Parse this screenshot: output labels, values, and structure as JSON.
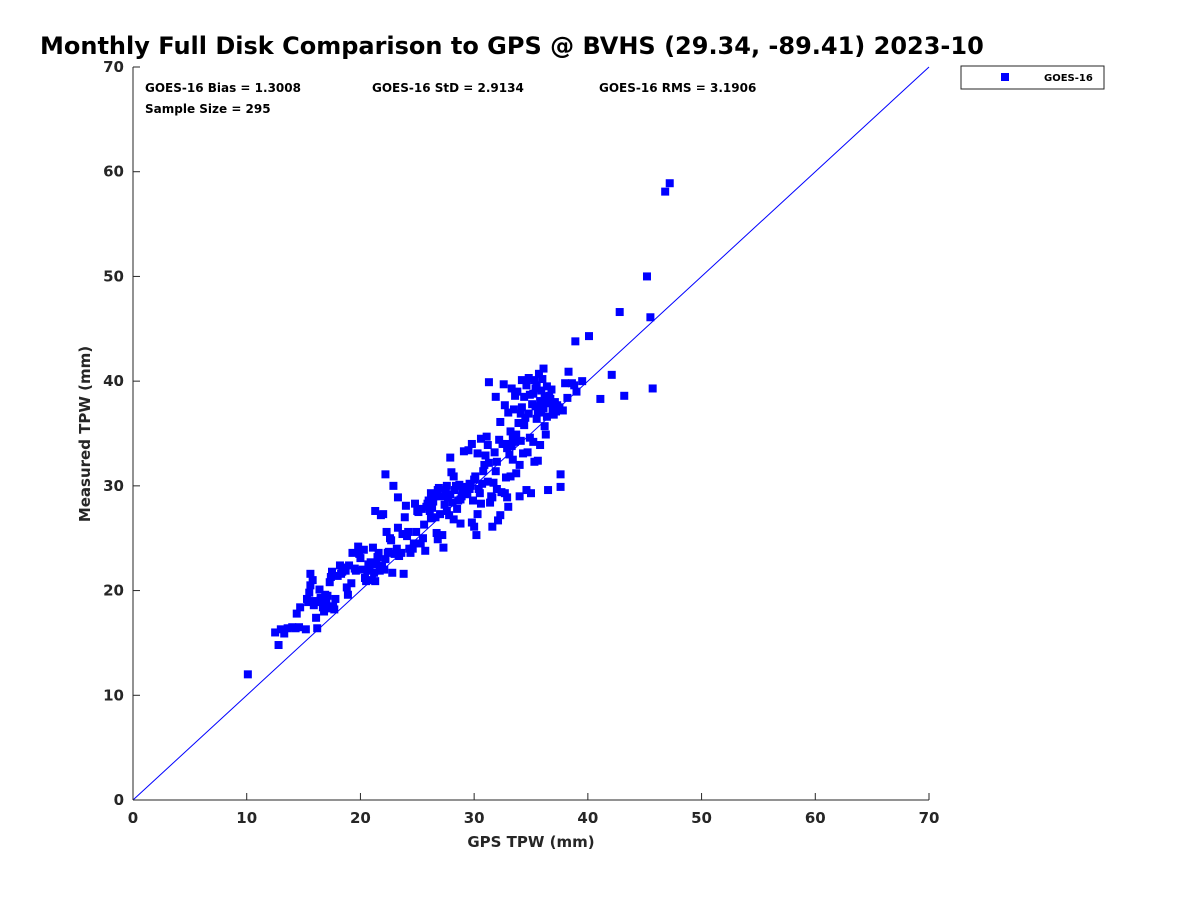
{
  "chart_data": {
    "type": "scatter",
    "title": "Monthly Full Disk Comparison to GPS @ BVHS (29.34, -89.41) 2023-10",
    "xlabel": "GPS TPW (mm)",
    "ylabel": "Measured TPW (mm)",
    "xlim": [
      0,
      70
    ],
    "ylim": [
      0,
      70
    ],
    "xticks": [
      "0",
      "10",
      "20",
      "30",
      "40",
      "50",
      "60",
      "70"
    ],
    "yticks": [
      "0",
      "10",
      "20",
      "30",
      "40",
      "50",
      "60",
      "70"
    ],
    "grid": false,
    "legend_position": "outside-top-right",
    "stats": {
      "bias": "GOES-16 Bias = 1.3008",
      "std": "GOES-16 StD = 2.9134",
      "rms": "GOES-16 RMS = 3.1906",
      "sample": "Sample Size = 295"
    },
    "reference_line": {
      "name": "1:1 line",
      "x": [
        0,
        70
      ],
      "y": [
        0,
        70
      ],
      "color": "#0000ff"
    },
    "series": [
      {
        "name": "GOES-16",
        "color": "#0000ff",
        "marker": "square",
        "points": [
          [
            10.1,
            12.0
          ],
          [
            12.5,
            16.0
          ],
          [
            12.8,
            14.8
          ],
          [
            13.0,
            16.3
          ],
          [
            13.3,
            15.9
          ],
          [
            13.6,
            16.4
          ],
          [
            14.0,
            16.5
          ],
          [
            14.3,
            16.4
          ],
          [
            14.6,
            16.5
          ],
          [
            14.4,
            17.8
          ],
          [
            14.7,
            18.4
          ],
          [
            15.2,
            16.3
          ],
          [
            15.3,
            19.2
          ],
          [
            15.5,
            19.8
          ],
          [
            15.6,
            20.5
          ],
          [
            15.6,
            21.6
          ],
          [
            15.8,
            21.0
          ],
          [
            16.0,
            19.0
          ],
          [
            16.2,
            16.4
          ],
          [
            16.3,
            18.9
          ],
          [
            16.5,
            19.3
          ],
          [
            16.4,
            20.1
          ],
          [
            16.7,
            18.4
          ],
          [
            16.9,
            19.6
          ],
          [
            17.0,
            18.9
          ],
          [
            17.2,
            18.3
          ],
          [
            17.3,
            20.8
          ],
          [
            17.4,
            21.3
          ],
          [
            17.5,
            21.8
          ],
          [
            17.6,
            18.5
          ],
          [
            17.8,
            19.2
          ],
          [
            18.0,
            21.4
          ],
          [
            18.2,
            22.4
          ],
          [
            18.3,
            21.6
          ],
          [
            18.5,
            22.2
          ],
          [
            18.7,
            21.9
          ],
          [
            18.9,
            19.6
          ],
          [
            19.2,
            20.7
          ],
          [
            19.3,
            23.6
          ],
          [
            19.6,
            21.9
          ],
          [
            19.8,
            24.2
          ],
          [
            20.0,
            23.1
          ],
          [
            20.3,
            23.9
          ],
          [
            20.4,
            21.2
          ],
          [
            20.6,
            21.9
          ],
          [
            20.8,
            22.3
          ],
          [
            20.9,
            22.7
          ],
          [
            21.0,
            21.0
          ],
          [
            21.1,
            24.1
          ],
          [
            21.3,
            20.9
          ],
          [
            21.4,
            22.5
          ],
          [
            21.3,
            27.6
          ],
          [
            21.6,
            23.6
          ],
          [
            21.7,
            21.9
          ],
          [
            21.8,
            27.2
          ],
          [
            21.9,
            22.4
          ],
          [
            22.0,
            27.3
          ],
          [
            22.1,
            22.0
          ],
          [
            22.2,
            23.0
          ],
          [
            22.3,
            25.6
          ],
          [
            22.4,
            23.6
          ],
          [
            22.2,
            31.1
          ],
          [
            22.6,
            25.0
          ],
          [
            22.8,
            21.7
          ],
          [
            22.9,
            30.0
          ],
          [
            23.0,
            23.5
          ],
          [
            23.2,
            24.0
          ],
          [
            23.3,
            26.0
          ],
          [
            23.3,
            28.9
          ],
          [
            23.6,
            23.6
          ],
          [
            23.8,
            21.6
          ],
          [
            23.9,
            27.0
          ],
          [
            24.0,
            28.1
          ],
          [
            24.2,
            25.6
          ],
          [
            24.4,
            23.6
          ],
          [
            24.6,
            24.0
          ],
          [
            24.7,
            24.5
          ],
          [
            24.8,
            28.3
          ],
          [
            24.9,
            25.6
          ],
          [
            25.1,
            27.5
          ],
          [
            25.3,
            24.5
          ],
          [
            25.4,
            27.8
          ],
          [
            25.5,
            25.0
          ],
          [
            25.7,
            23.8
          ],
          [
            25.8,
            28.0
          ],
          [
            25.9,
            28.3
          ],
          [
            26.0,
            28.6
          ],
          [
            26.1,
            27.6
          ],
          [
            26.2,
            29.3
          ],
          [
            26.4,
            28.5
          ],
          [
            26.5,
            29.0
          ],
          [
            26.6,
            27.0
          ],
          [
            26.7,
            25.5
          ],
          [
            26.8,
            29.6
          ],
          [
            26.8,
            24.9
          ],
          [
            27.0,
            27.3
          ],
          [
            27.1,
            29.0
          ],
          [
            27.2,
            25.3
          ],
          [
            27.3,
            24.1
          ],
          [
            27.4,
            28.2
          ],
          [
            27.5,
            29.6
          ],
          [
            27.6,
            30.0
          ],
          [
            27.8,
            27.2
          ],
          [
            27.9,
            29.2
          ],
          [
            27.9,
            32.7
          ],
          [
            28.0,
            31.3
          ],
          [
            28.1,
            28.4
          ],
          [
            28.2,
            26.8
          ],
          [
            28.2,
            30.9
          ],
          [
            28.3,
            29.6
          ],
          [
            28.5,
            27.8
          ],
          [
            28.6,
            28.6
          ],
          [
            28.7,
            30.1
          ],
          [
            28.8,
            26.4
          ],
          [
            28.9,
            29.0
          ],
          [
            29.0,
            29.5
          ],
          [
            29.1,
            33.3
          ],
          [
            29.3,
            29.9
          ],
          [
            29.4,
            29.2
          ],
          [
            29.5,
            33.4
          ],
          [
            29.6,
            29.7
          ],
          [
            29.7,
            30.0
          ],
          [
            29.8,
            26.5
          ],
          [
            29.8,
            34.0
          ],
          [
            29.9,
            28.6
          ],
          [
            30.0,
            30.6
          ],
          [
            30.0,
            26.1
          ],
          [
            30.1,
            30.9
          ],
          [
            30.2,
            25.3
          ],
          [
            30.3,
            33.1
          ],
          [
            30.3,
            27.3
          ],
          [
            30.5,
            29.3
          ],
          [
            30.6,
            28.3
          ],
          [
            30.6,
            34.5
          ],
          [
            30.7,
            30.2
          ],
          [
            30.9,
            32.0
          ],
          [
            31.0,
            32.9
          ],
          [
            31.1,
            34.7
          ],
          [
            31.2,
            33.9
          ],
          [
            31.2,
            30.4
          ],
          [
            31.3,
            32.2
          ],
          [
            31.4,
            28.4
          ],
          [
            31.3,
            39.9
          ],
          [
            31.5,
            29.0
          ],
          [
            31.6,
            26.1
          ],
          [
            31.8,
            33.2
          ],
          [
            31.9,
            38.5
          ],
          [
            32.0,
            32.3
          ],
          [
            32.0,
            29.7
          ],
          [
            32.1,
            26.7
          ],
          [
            32.2,
            34.4
          ],
          [
            32.3,
            27.2
          ],
          [
            32.3,
            36.1
          ],
          [
            32.5,
            34.0
          ],
          [
            32.6,
            39.7
          ],
          [
            32.7,
            29.3
          ],
          [
            32.7,
            37.7
          ],
          [
            32.8,
            30.8
          ],
          [
            32.9,
            33.6
          ],
          [
            32.9,
            28.9
          ],
          [
            33.0,
            37.0
          ],
          [
            33.0,
            28.0
          ],
          [
            33.2,
            35.2
          ],
          [
            33.2,
            30.9
          ],
          [
            33.3,
            39.3
          ],
          [
            33.4,
            32.5
          ],
          [
            33.4,
            34.5
          ],
          [
            33.5,
            37.3
          ],
          [
            33.6,
            38.6
          ],
          [
            33.7,
            31.2
          ],
          [
            33.7,
            34.9
          ],
          [
            33.8,
            39.0
          ],
          [
            33.9,
            36.0
          ],
          [
            34.0,
            29.0
          ],
          [
            34.0,
            32.0
          ],
          [
            34.1,
            34.3
          ],
          [
            34.2,
            37.5
          ],
          [
            34.2,
            40.1
          ],
          [
            34.3,
            33.1
          ],
          [
            34.4,
            38.5
          ],
          [
            34.5,
            36.5
          ],
          [
            34.6,
            39.6
          ],
          [
            34.6,
            29.6
          ],
          [
            34.7,
            33.2
          ],
          [
            34.8,
            36.9
          ],
          [
            34.8,
            40.3
          ],
          [
            34.9,
            38.7
          ],
          [
            35.0,
            29.3
          ],
          [
            35.1,
            37.8
          ],
          [
            35.2,
            34.2
          ],
          [
            35.2,
            38.8
          ],
          [
            35.3,
            40.1
          ],
          [
            35.3,
            32.3
          ],
          [
            35.4,
            37.6
          ],
          [
            35.5,
            36.4
          ],
          [
            35.5,
            39.6
          ],
          [
            35.6,
            37.1
          ],
          [
            35.6,
            32.4
          ],
          [
            35.7,
            40.7
          ],
          [
            35.8,
            38.1
          ],
          [
            35.8,
            33.9
          ],
          [
            35.9,
            39.1
          ],
          [
            36.0,
            37.6
          ],
          [
            36.0,
            40.2
          ],
          [
            36.1,
            41.2
          ],
          [
            36.2,
            38.5
          ],
          [
            36.2,
            35.7
          ],
          [
            36.3,
            37.9
          ],
          [
            36.3,
            34.9
          ],
          [
            36.4,
            39.5
          ],
          [
            36.5,
            29.6
          ],
          [
            36.6,
            38.6
          ],
          [
            36.7,
            37.9
          ],
          [
            36.8,
            39.2
          ],
          [
            36.9,
            37.3
          ],
          [
            37.0,
            36.8
          ],
          [
            37.1,
            38.0
          ],
          [
            37.3,
            37.7
          ],
          [
            37.5,
            37.5
          ],
          [
            37.6,
            29.9
          ],
          [
            37.6,
            31.1
          ],
          [
            37.8,
            37.2
          ],
          [
            38.0,
            39.8
          ],
          [
            38.2,
            38.4
          ],
          [
            38.3,
            40.9
          ],
          [
            38.6,
            39.8
          ],
          [
            38.8,
            39.6
          ],
          [
            38.9,
            43.8
          ],
          [
            39.0,
            39.0
          ],
          [
            39.5,
            40.0
          ],
          [
            40.1,
            44.3
          ],
          [
            41.1,
            38.3
          ],
          [
            42.1,
            40.6
          ],
          [
            42.8,
            46.6
          ],
          [
            43.2,
            38.6
          ],
          [
            45.2,
            50.0
          ],
          [
            45.5,
            46.1
          ],
          [
            45.7,
            39.3
          ],
          [
            46.8,
            58.1
          ],
          [
            47.2,
            58.9
          ],
          [
            15.4,
            18.9
          ],
          [
            16.1,
            17.4
          ],
          [
            16.8,
            18.0
          ],
          [
            17.1,
            19.5
          ],
          [
            17.7,
            18.2
          ],
          [
            18.4,
            21.8
          ],
          [
            19.0,
            22.4
          ],
          [
            19.5,
            22.1
          ],
          [
            20.2,
            22.0
          ],
          [
            20.7,
            22.5
          ],
          [
            21.2,
            21.7
          ],
          [
            21.5,
            23.2
          ],
          [
            22.5,
            23.7
          ],
          [
            23.4,
            23.3
          ],
          [
            24.3,
            24.0
          ],
          [
            25.0,
            27.6
          ],
          [
            26.3,
            27.9
          ],
          [
            27.7,
            28.9
          ],
          [
            29.2,
            29.8
          ],
          [
            30.4,
            29.7
          ],
          [
            31.6,
            28.9
          ],
          [
            32.4,
            29.4
          ],
          [
            33.1,
            33.0
          ],
          [
            33.6,
            34.2
          ],
          [
            34.4,
            35.8
          ],
          [
            34.9,
            34.6
          ],
          [
            35.4,
            39.3
          ],
          [
            36.1,
            37.4
          ],
          [
            36.7,
            38.3
          ],
          [
            37.2,
            37.1
          ],
          [
            19.9,
            23.5
          ],
          [
            23.7,
            25.4
          ],
          [
            26.9,
            29.8
          ],
          [
            28.4,
            30.0
          ],
          [
            31.7,
            30.3
          ],
          [
            32.8,
            34.0
          ],
          [
            34.1,
            36.9
          ],
          [
            35.9,
            37.0
          ],
          [
            27.6,
            27.6
          ],
          [
            29.6,
            30.2
          ],
          [
            30.8,
            31.4
          ],
          [
            33.3,
            33.8
          ],
          [
            24.1,
            25.2
          ],
          [
            26.2,
            26.9
          ],
          [
            18.8,
            20.3
          ],
          [
            16.5,
            19.1
          ],
          [
            15.9,
            18.6
          ],
          [
            20.5,
            20.9
          ],
          [
            22.7,
            24.8
          ],
          [
            25.6,
            26.3
          ],
          [
            28.8,
            28.7
          ],
          [
            31.9,
            31.4
          ],
          [
            36.4,
            36.6
          ]
        ]
      }
    ]
  }
}
